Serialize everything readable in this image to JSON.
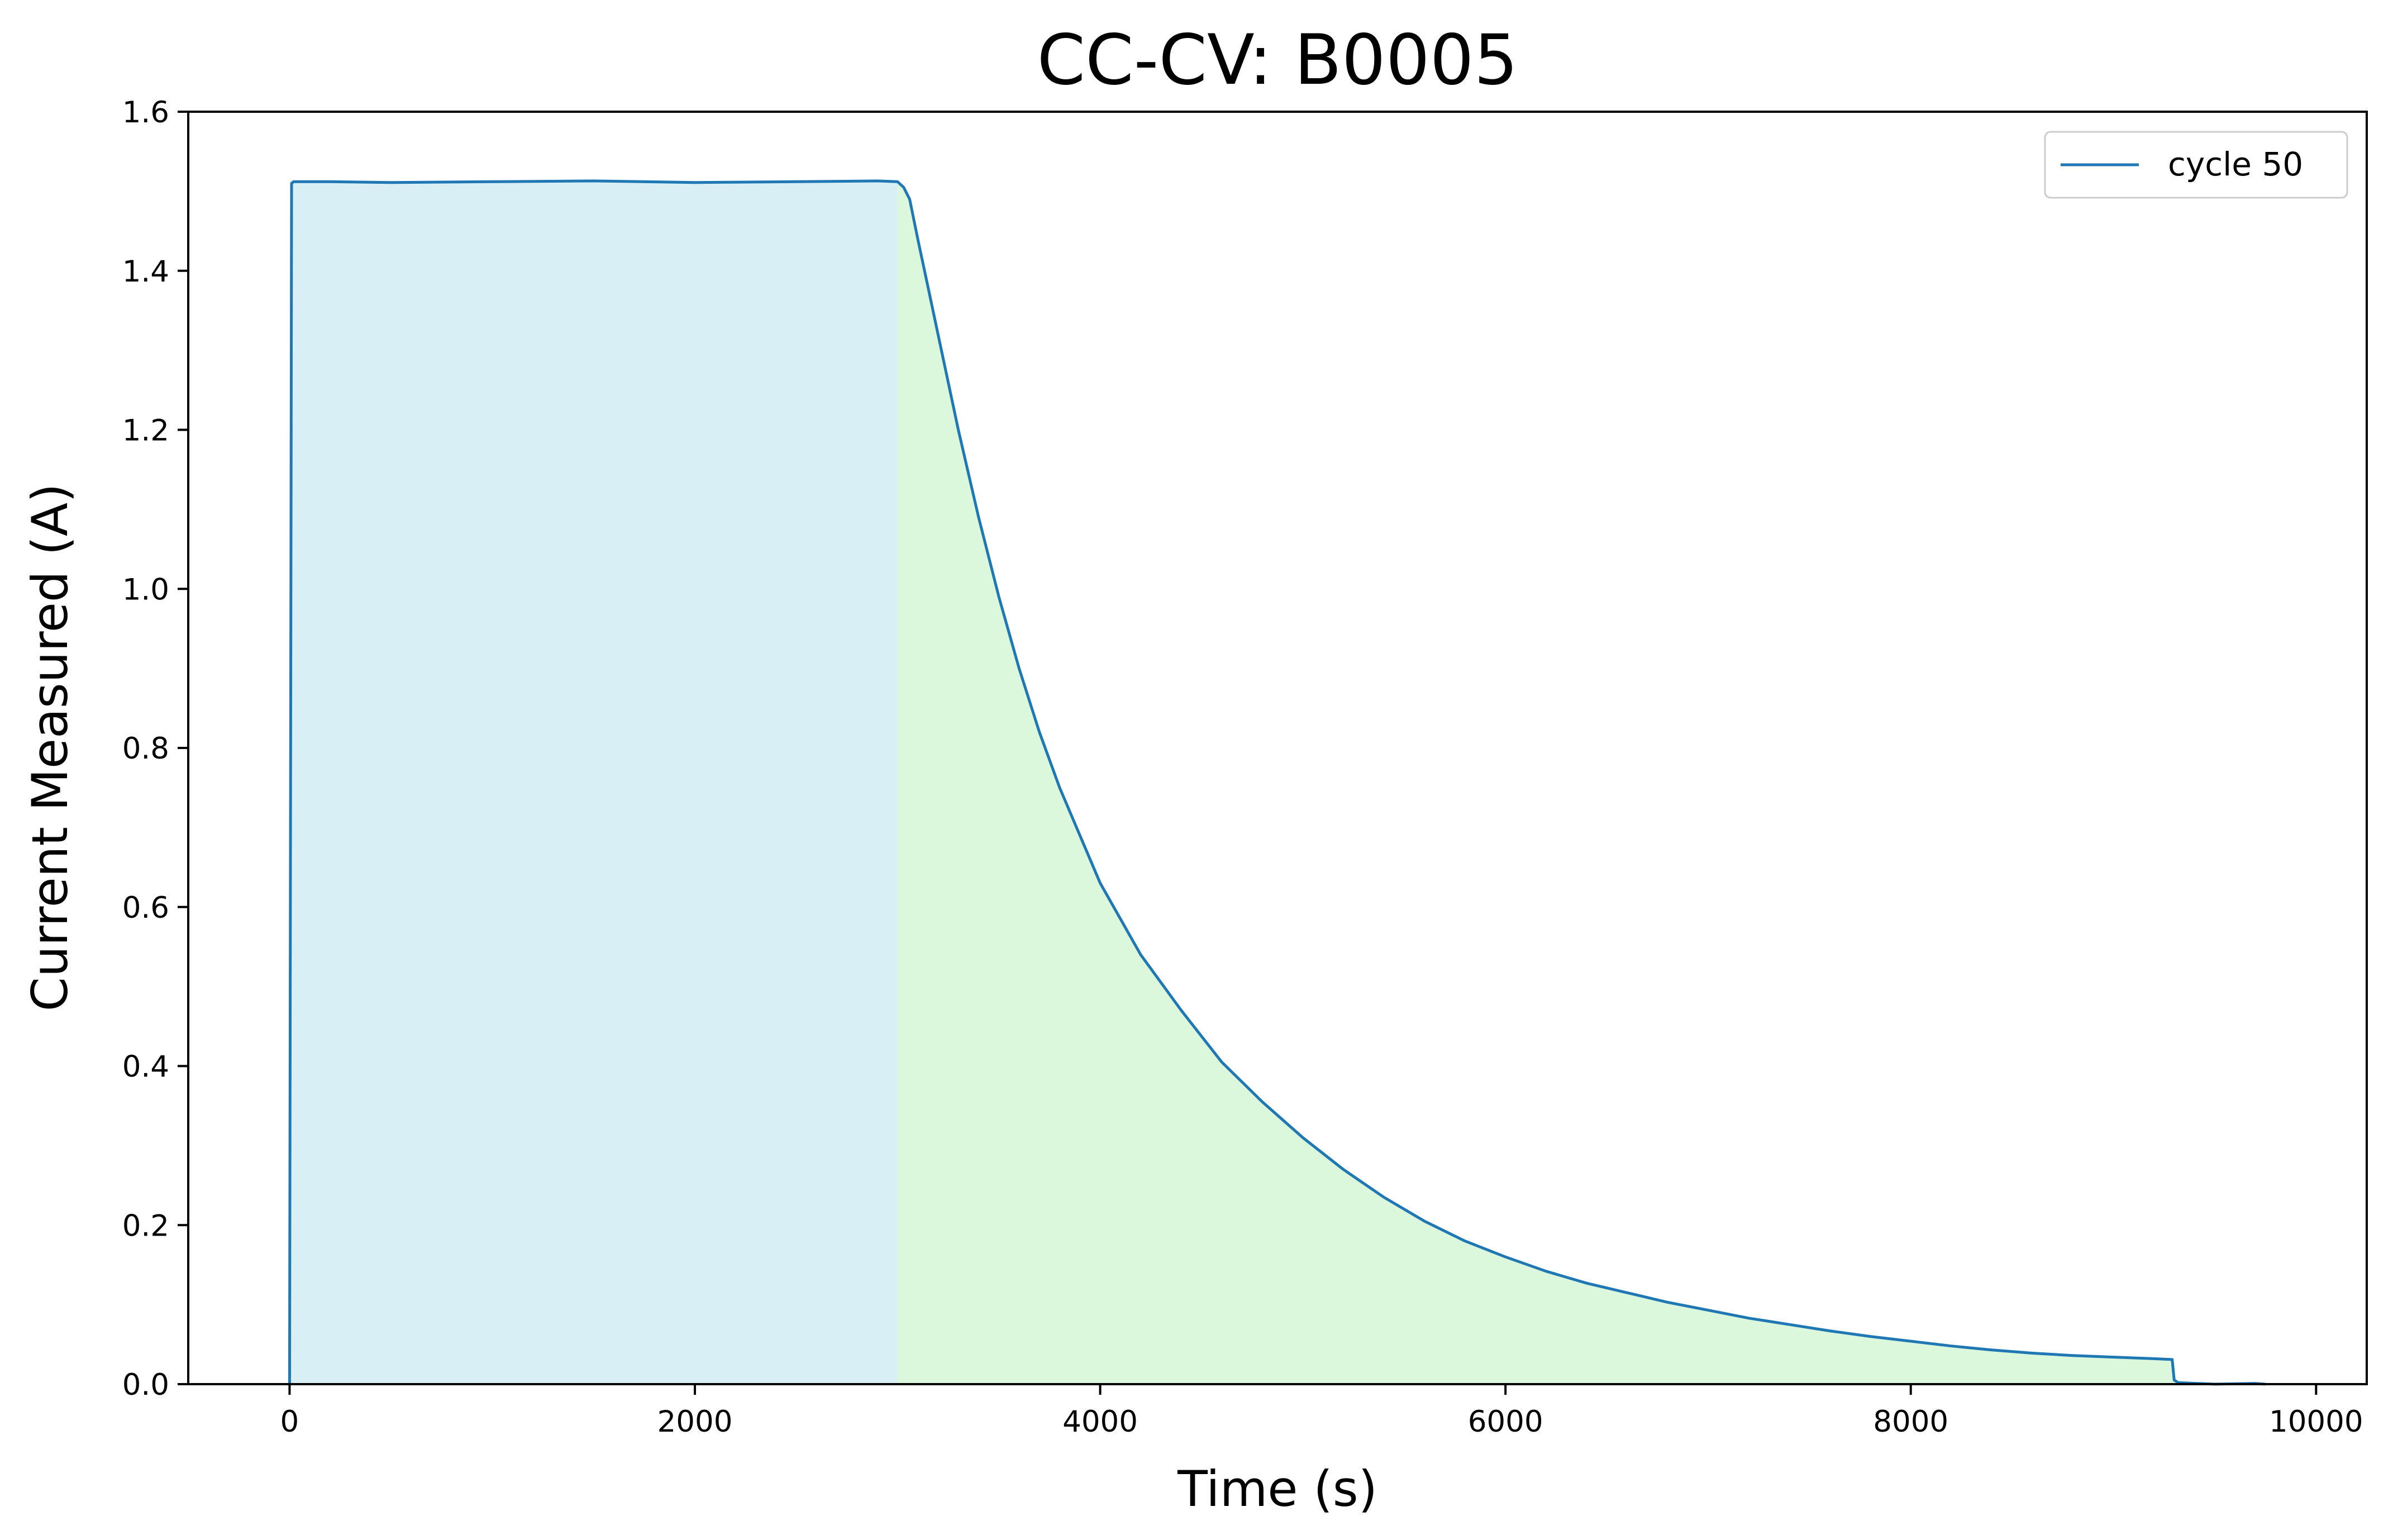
{
  "chart_data": {
    "type": "area",
    "title": "CC-CV: B0005",
    "xlabel": "Time (s)",
    "ylabel": "Current Measured (A)",
    "xlim": [
      -500,
      10250
    ],
    "ylim": [
      0.0,
      1.6
    ],
    "xticks": [
      "0",
      "2000",
      "4000",
      "6000",
      "8000",
      "10000"
    ],
    "xtick_values": [
      0,
      2000,
      4000,
      6000,
      8000,
      10000
    ],
    "yticks": [
      "0.0",
      "0.2",
      "0.4",
      "0.6",
      "0.8",
      "1.0",
      "1.2",
      "1.4",
      "1.6"
    ],
    "ytick_values": [
      0.0,
      0.2,
      0.4,
      0.6,
      0.8,
      1.0,
      1.2,
      1.4,
      1.6
    ],
    "grid": false,
    "legend": {
      "position": "top-right",
      "entries": [
        "cycle 50"
      ]
    },
    "series": [
      {
        "name": "cycle 50",
        "color": "#1f77b4",
        "x": [
          0,
          10,
          20,
          200,
          500,
          1000,
          1500,
          2000,
          2500,
          2900,
          3000,
          3030,
          3060,
          3100,
          3150,
          3200,
          3300,
          3400,
          3500,
          3600,
          3700,
          3800,
          3900,
          4000,
          4200,
          4400,
          4600,
          4800,
          5000,
          5200,
          5400,
          5600,
          5800,
          6000,
          6200,
          6400,
          6600,
          6800,
          7000,
          7200,
          7400,
          7600,
          7800,
          8000,
          8200,
          8400,
          8600,
          8800,
          9000,
          9200,
          9290,
          9300,
          9320,
          9500,
          9700,
          9750
        ],
        "y": [
          0.0,
          1.51,
          1.512,
          1.512,
          1.511,
          1.512,
          1.513,
          1.511,
          1.512,
          1.513,
          1.512,
          1.505,
          1.49,
          1.44,
          1.38,
          1.32,
          1.2,
          1.09,
          0.99,
          0.9,
          0.82,
          0.75,
          0.69,
          0.63,
          0.54,
          0.47,
          0.405,
          0.355,
          0.31,
          0.27,
          0.235,
          0.205,
          0.18,
          0.16,
          0.142,
          0.127,
          0.115,
          0.103,
          0.093,
          0.083,
          0.075,
          0.067,
          0.06,
          0.054,
          0.048,
          0.043,
          0.039,
          0.036,
          0.034,
          0.032,
          0.031,
          0.005,
          0.002,
          0.0,
          0.001,
          0.0
        ]
      }
    ],
    "regions": [
      {
        "phase": "CC",
        "x_start": 0,
        "x_end": 3000,
        "color": "#d8eff5"
      },
      {
        "phase": "CV",
        "x_start": 3000,
        "x_end": 9300,
        "color": "#dbf8dc"
      }
    ]
  }
}
